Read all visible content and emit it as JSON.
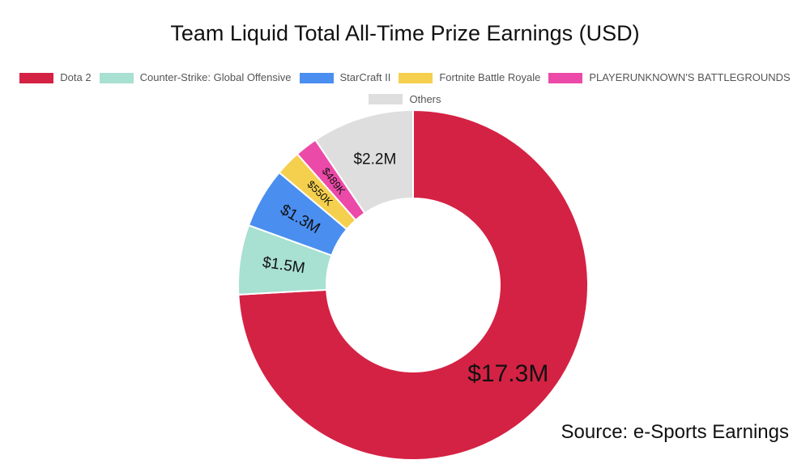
{
  "chart_data": {
    "type": "pie",
    "title": "Team Liquid Total All-Time Prize Earnings (USD)",
    "legend_position": "top",
    "donut": true,
    "slices": [
      {
        "name": "Dota 2",
        "value": 17.3,
        "label": "$17.3M",
        "color": "#d42244"
      },
      {
        "name": "Counter-Strike: Global Offensive",
        "value": 1.5,
        "label": "$1.5M",
        "color": "#a8e0d1"
      },
      {
        "name": "StarCraft II",
        "value": 1.3,
        "label": "$1.3M",
        "color": "#4a8ef0"
      },
      {
        "name": "Fortnite Battle Royale",
        "value": 0.55,
        "label": "$550K",
        "color": "#f5d04e"
      },
      {
        "name": "PLAYERUNKNOWN'S BATTLEGROUNDS",
        "value": 0.489,
        "label": "$489K",
        "color": "#ec4aa8"
      },
      {
        "name": "Others",
        "value": 2.2,
        "label": "$2.2M",
        "color": "#dedede"
      }
    ]
  },
  "source": "Source: e-Sports Earnings"
}
